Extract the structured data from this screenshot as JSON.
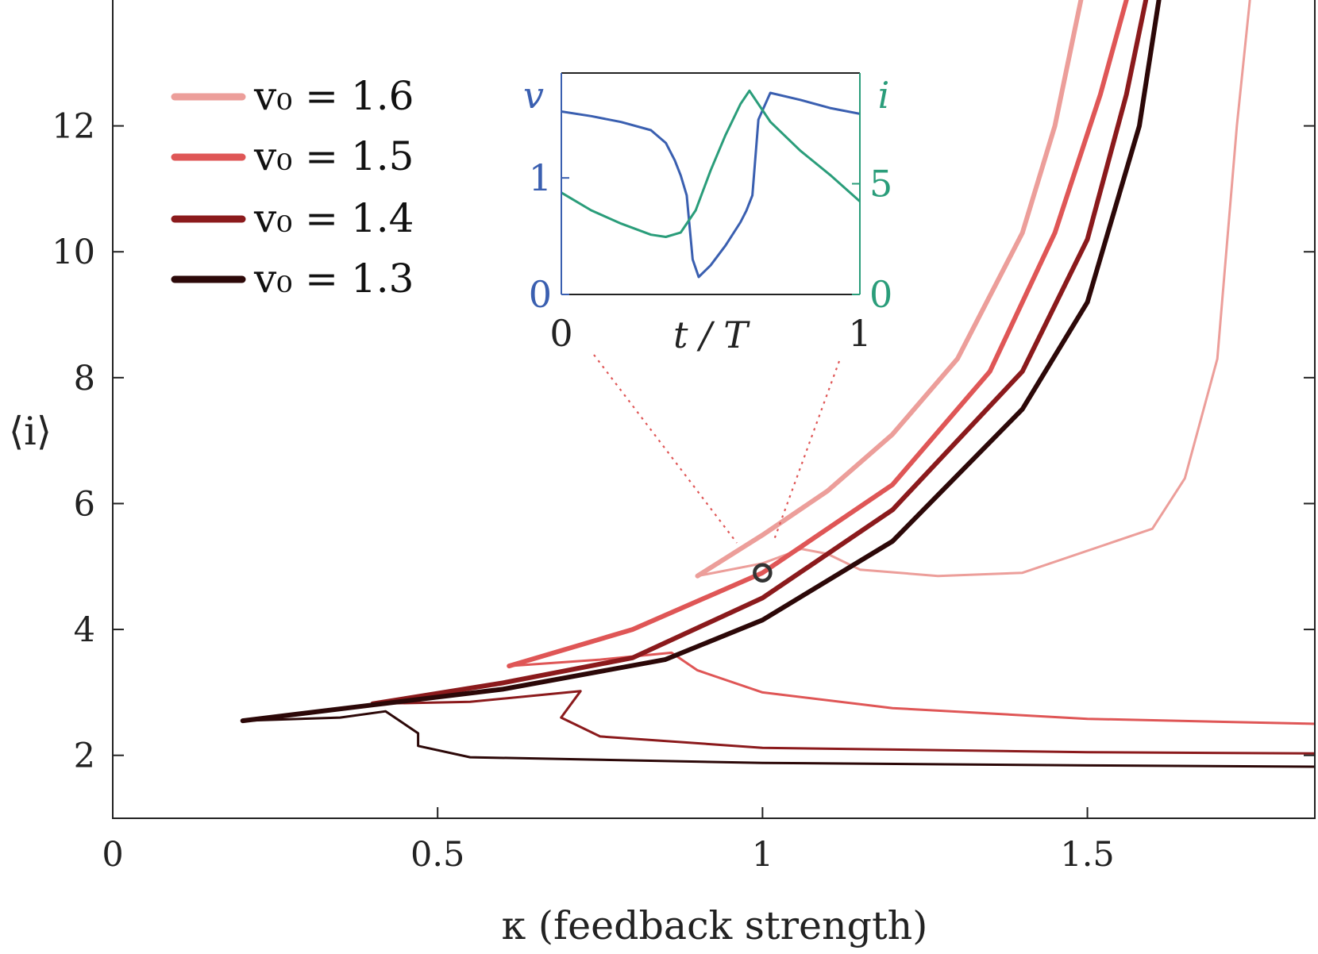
{
  "chart_data": [
    {
      "type": "line",
      "xlabel": "κ (feedback strength)",
      "ylabel": "⟨i⟩",
      "xlim": [
        0,
        1.85
      ],
      "ylim": [
        1,
        14
      ],
      "xticks": [
        0,
        0.5,
        1,
        1.5
      ],
      "xtick_labels": [
        "0",
        "0.5",
        "1",
        "1.5"
      ],
      "yticks": [
        2,
        4,
        6,
        8,
        10,
        12
      ],
      "ytick_labels": [
        "2",
        "4",
        "6",
        "8",
        "10",
        "12"
      ],
      "legend_position": "top-left",
      "series": [
        {
          "name": "v₀ = 1.6",
          "color": "#ec9e9a",
          "upper_branch": [
            [
              0.9,
              4.85
            ],
            [
              1.0,
              5.5
            ],
            [
              1.1,
              6.2
            ],
            [
              1.2,
              7.1
            ],
            [
              1.3,
              8.3
            ],
            [
              1.4,
              10.3
            ],
            [
              1.45,
              12.0
            ],
            [
              1.49,
              14.0
            ]
          ],
          "lower_branch": [
            [
              0.9,
              4.85
            ],
            [
              1.0,
              5.05
            ],
            [
              1.06,
              5.28
            ],
            [
              1.1,
              5.2
            ],
            [
              1.15,
              4.95
            ],
            [
              1.27,
              4.85
            ],
            [
              1.4,
              4.9
            ],
            [
              1.6,
              5.6
            ],
            [
              1.65,
              6.4
            ],
            [
              1.7,
              8.3
            ],
            [
              1.73,
              12.0
            ],
            [
              1.75,
              14.0
            ]
          ]
        },
        {
          "name": "v₀ = 1.5",
          "color": "#df5656",
          "upper_branch": [
            [
              0.61,
              3.42
            ],
            [
              0.8,
              4.0
            ],
            [
              1.0,
              4.9
            ],
            [
              1.2,
              6.3
            ],
            [
              1.35,
              8.1
            ],
            [
              1.45,
              10.3
            ],
            [
              1.52,
              12.5
            ],
            [
              1.56,
              14.0
            ]
          ],
          "lower_branch": [
            [
              0.61,
              3.42
            ],
            [
              0.75,
              3.52
            ],
            [
              0.86,
              3.63
            ],
            [
              0.9,
              3.35
            ],
            [
              1.0,
              3.0
            ],
            [
              1.2,
              2.75
            ],
            [
              1.5,
              2.58
            ],
            [
              1.85,
              2.5
            ]
          ]
        },
        {
          "name": "v₀ = 1.4",
          "color": "#8b1a1c",
          "upper_branch": [
            [
              0.4,
              2.82
            ],
            [
              0.6,
              3.15
            ],
            [
              0.8,
              3.55
            ],
            [
              1.0,
              4.5
            ],
            [
              1.2,
              5.9
            ],
            [
              1.4,
              8.1
            ],
            [
              1.5,
              10.2
            ],
            [
              1.56,
              12.5
            ],
            [
              1.59,
              14.0
            ]
          ],
          "lower_branch": [
            [
              0.4,
              2.82
            ],
            [
              0.55,
              2.85
            ],
            [
              0.72,
              3.02
            ],
            [
              0.69,
              2.6
            ],
            [
              0.75,
              2.3
            ],
            [
              1.0,
              2.12
            ],
            [
              1.5,
              2.05
            ],
            [
              1.85,
              2.03
            ]
          ]
        },
        {
          "name": "v₀ = 1.3",
          "color": "#2c0808",
          "upper_branch": [
            [
              0.2,
              2.55
            ],
            [
              0.4,
              2.8
            ],
            [
              0.6,
              3.05
            ],
            [
              0.85,
              3.52
            ],
            [
              1.0,
              4.15
            ],
            [
              1.2,
              5.4
            ],
            [
              1.4,
              7.5
            ],
            [
              1.5,
              9.2
            ],
            [
              1.58,
              12.0
            ],
            [
              1.61,
              14.0
            ]
          ],
          "lower_branch": [
            [
              0.2,
              2.55
            ],
            [
              0.35,
              2.6
            ],
            [
              0.42,
              2.7
            ],
            [
              0.47,
              2.35
            ],
            [
              0.47,
              2.15
            ],
            [
              0.55,
              1.97
            ],
            [
              1.0,
              1.88
            ],
            [
              1.5,
              1.84
            ],
            [
              1.85,
              1.82
            ]
          ]
        }
      ],
      "annotations": [
        {
          "type": "marker-circle",
          "x": 1.0,
          "y": 4.9,
          "color": "#333333"
        }
      ]
    },
    {
      "type": "line",
      "inset": true,
      "xlabel": "t / T",
      "ylabel_left": "v",
      "ylabel_right": "i",
      "xlim": [
        0,
        1
      ],
      "ylim_left": [
        0,
        1.9
      ],
      "ylim_right": [
        0,
        10
      ],
      "xtick_labels": [
        "0",
        "1"
      ],
      "left_ytick_labels": [
        "0",
        "1"
      ],
      "right_ytick_labels": [
        "0",
        "5"
      ],
      "left_color": "#3a5fb0",
      "right_color": "#2a9d7a",
      "series": [
        {
          "name": "v",
          "axis": "left",
          "color": "#3a5fb0",
          "x": [
            0,
            0.1,
            0.2,
            0.3,
            0.35,
            0.38,
            0.4,
            0.42,
            0.44,
            0.46,
            0.5,
            0.55,
            0.6,
            0.62,
            0.64,
            0.66,
            0.7,
            0.8,
            0.9,
            1.0
          ],
          "y": [
            1.57,
            1.53,
            1.48,
            1.41,
            1.3,
            1.15,
            1.02,
            0.85,
            0.3,
            0.15,
            0.25,
            0.42,
            0.62,
            0.72,
            0.85,
            1.5,
            1.73,
            1.67,
            1.6,
            1.55
          ]
        },
        {
          "name": "i",
          "axis": "right",
          "color": "#2a9d7a",
          "x": [
            0,
            0.1,
            0.2,
            0.3,
            0.35,
            0.4,
            0.45,
            0.5,
            0.55,
            0.6,
            0.63,
            0.65,
            0.7,
            0.8,
            0.9,
            1.0
          ],
          "y": [
            4.6,
            3.8,
            3.2,
            2.7,
            2.6,
            2.8,
            3.8,
            5.6,
            7.2,
            8.6,
            9.2,
            8.8,
            7.8,
            6.5,
            5.4,
            4.2
          ]
        }
      ],
      "left_yticks": [
        0,
        1
      ],
      "right_yticks": [
        0,
        5
      ],
      "connector_style": "dotted"
    }
  ]
}
